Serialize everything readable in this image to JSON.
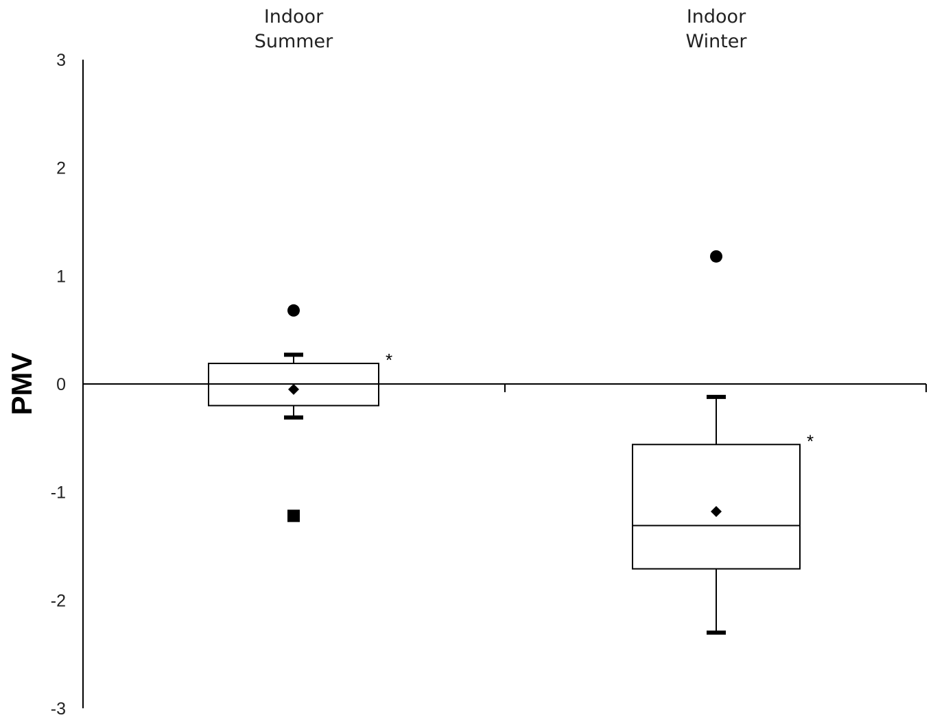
{
  "chart_data": {
    "type": "box",
    "ylabel": "PMV",
    "ylim": [
      -3,
      3
    ],
    "yticks": [
      "3",
      "2",
      "1",
      "0",
      "-1",
      "-2",
      "-3"
    ],
    "grid": false,
    "category_axis_position": "top",
    "categories": [
      {
        "label_lines": [
          "Indoor",
          "Summer"
        ],
        "whisker_high": 0.27,
        "q3": 0.19,
        "median": 0.0,
        "q1": -0.2,
        "whisker_low": -0.31,
        "mean": -0.05,
        "max_point": 0.68,
        "min_point": -1.22,
        "annotation": "*"
      },
      {
        "label_lines": [
          "Indoor",
          "Winter"
        ],
        "whisker_high": -0.12,
        "q3": -0.56,
        "median": -1.31,
        "q1": -1.71,
        "whisker_low": -2.3,
        "mean": -1.18,
        "max_point": 1.18,
        "min_point": null,
        "annotation": "*"
      }
    ]
  }
}
